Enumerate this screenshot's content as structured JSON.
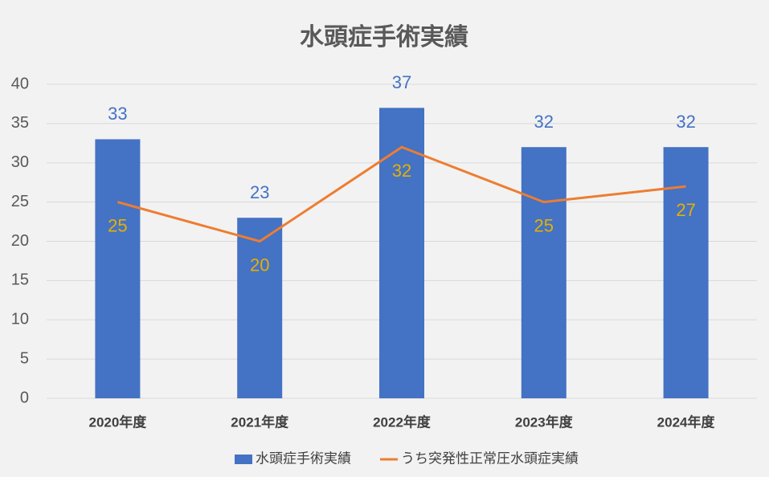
{
  "chart_data": {
    "type": "combo",
    "title": "水頭症手術実績",
    "categories": [
      "2020年度",
      "2021年度",
      "2022年度",
      "2023年度",
      "2024年度"
    ],
    "series": [
      {
        "name": "水頭症手術実績",
        "type": "bar",
        "color": "#4472c4",
        "label_color": "#4472c4",
        "values": [
          33,
          23,
          37,
          32,
          32
        ]
      },
      {
        "name": "うち突発性正常圧水頭症実績",
        "type": "line",
        "color": "#ed7d31",
        "label_color": "#e6b000",
        "values": [
          25,
          20,
          32,
          25,
          27
        ]
      }
    ],
    "ylim": [
      0,
      40
    ],
    "yticks": [
      0,
      5,
      10,
      15,
      20,
      25,
      30,
      35,
      40
    ],
    "grid": true,
    "legend": "bottom"
  }
}
